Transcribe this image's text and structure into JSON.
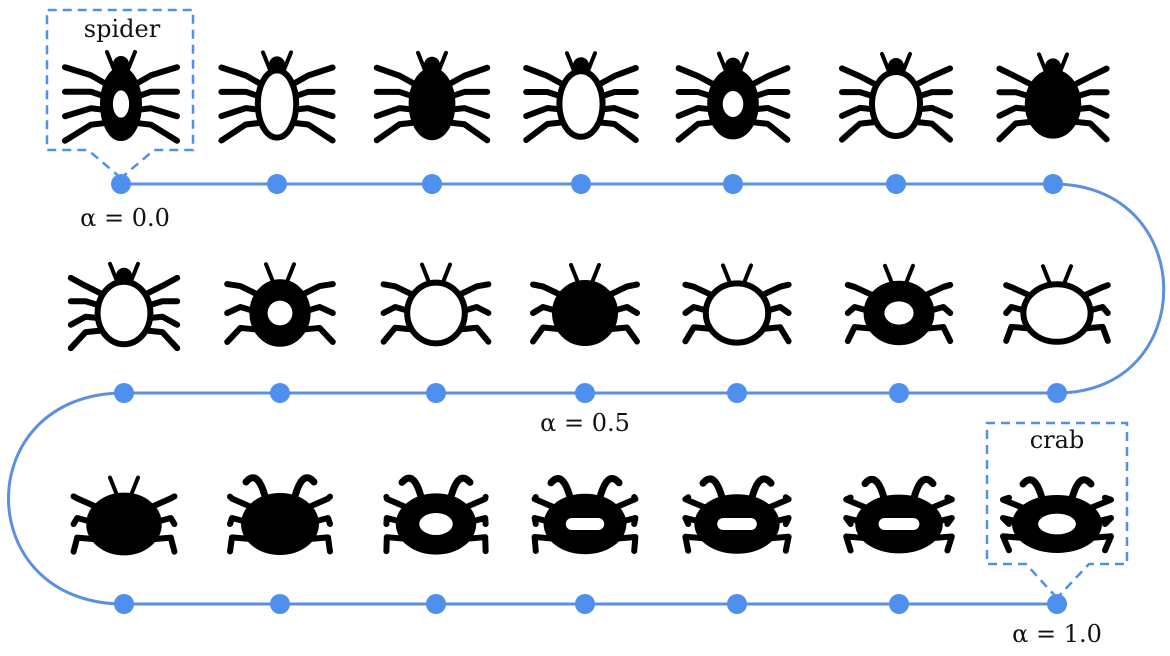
{
  "figure": {
    "start_label": "spider",
    "end_label": "crab",
    "alpha_labels": [
      {
        "text": "α = 0.0",
        "at_step": 0
      },
      {
        "text": "α = 0.5",
        "at_step": 10
      },
      {
        "text": "α = 1.0",
        "at_step": 20
      }
    ],
    "colors": {
      "path": "#5b8fe0",
      "node": "#4f8fee",
      "box": "#4f8fee",
      "glyph": "#000000"
    },
    "steps": [
      {
        "alpha": 0.0,
        "icon": "spider-icon"
      },
      {
        "alpha": 0.05,
        "icon": "spider-long-legs-icon"
      },
      {
        "alpha": 0.1,
        "icon": "tick-icon"
      },
      {
        "alpha": 0.15,
        "icon": "spider-spot-icon"
      },
      {
        "alpha": 0.2,
        "icon": "ladybug-icon"
      },
      {
        "alpha": 0.25,
        "icon": "beetle-icon"
      },
      {
        "alpha": 0.3,
        "icon": "bug-icon"
      },
      {
        "alpha": 0.35,
        "icon": "bug-round-icon"
      },
      {
        "alpha": 0.4,
        "icon": "bug-outline-icon"
      },
      {
        "alpha": 0.45,
        "icon": "bug-cross-icon"
      },
      {
        "alpha": 0.5,
        "icon": "bug-oval-icon"
      },
      {
        "alpha": 0.55,
        "icon": "spider-round-icon"
      },
      {
        "alpha": 0.6,
        "icon": "beetle-banded-icon"
      },
      {
        "alpha": 0.65,
        "icon": "beetle-outline-icon"
      },
      {
        "alpha": 0.7,
        "icon": "crab-round-icon"
      },
      {
        "alpha": 0.75,
        "icon": "bug-bands-icon"
      },
      {
        "alpha": 0.8,
        "icon": "tick-crab-icon"
      },
      {
        "alpha": 0.85,
        "icon": "crab-square-icon"
      },
      {
        "alpha": 0.9,
        "icon": "crab-icon"
      },
      {
        "alpha": 0.95,
        "icon": "crab-horned-icon"
      },
      {
        "alpha": 1.0,
        "icon": "crab-pincer-icon"
      }
    ]
  }
}
